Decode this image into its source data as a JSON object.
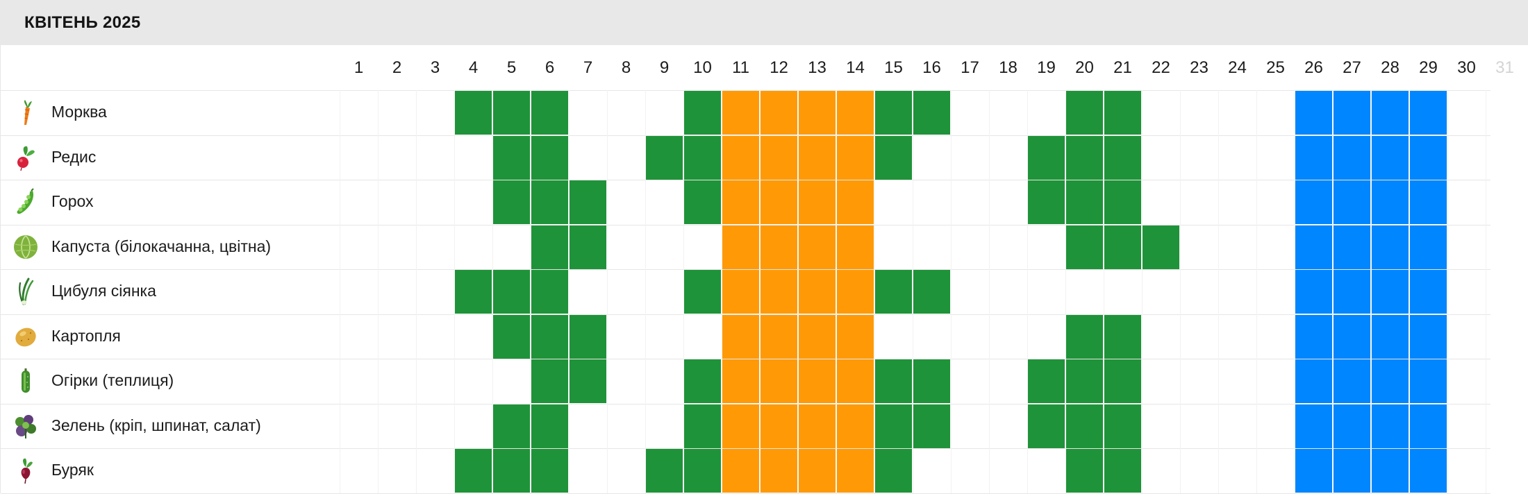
{
  "header": {
    "title": "КВІТЕНЬ 2025"
  },
  "days": [
    1,
    2,
    3,
    4,
    5,
    6,
    7,
    8,
    9,
    10,
    11,
    12,
    13,
    14,
    15,
    16,
    17,
    18,
    19,
    20,
    21,
    22,
    23,
    24,
    25,
    26,
    27,
    28,
    29,
    30,
    31
  ],
  "faded_days": [
    31
  ],
  "colors": {
    "favorable": "#1f9339",
    "unfavorable": "#ff9a06",
    "rest": "#0086ff"
  },
  "global_bands": {
    "unfavorable_days": [
      11,
      12,
      13,
      14
    ],
    "rest_days": [
      26,
      27,
      28,
      29
    ]
  },
  "crops": [
    {
      "name": "Морква",
      "icon": "carrot-icon",
      "favorable_days": [
        4,
        5,
        6,
        10,
        15,
        16,
        20,
        21
      ]
    },
    {
      "name": "Редис",
      "icon": "radish-icon",
      "favorable_days": [
        5,
        6,
        9,
        10,
        15,
        19,
        20,
        21
      ]
    },
    {
      "name": "Горох",
      "icon": "peas-icon",
      "favorable_days": [
        5,
        6,
        7,
        10,
        19,
        20,
        21
      ]
    },
    {
      "name": "Капуста (білокачанна, цвітна)",
      "icon": "cabbage-icon",
      "favorable_days": [
        6,
        7,
        20,
        21,
        22
      ]
    },
    {
      "name": "Цибуля сіянка",
      "icon": "onion-icon",
      "favorable_days": [
        4,
        5,
        6,
        10,
        15,
        16
      ]
    },
    {
      "name": "Картопля",
      "icon": "potato-icon",
      "favorable_days": [
        5,
        6,
        7,
        20,
        21
      ]
    },
    {
      "name": "Огірки (теплиця)",
      "icon": "cucumber-icon",
      "favorable_days": [
        6,
        7,
        10,
        15,
        16,
        19,
        20,
        21
      ]
    },
    {
      "name": "Зелень (кріп, шпинат, салат)",
      "icon": "greens-icon",
      "favorable_days": [
        5,
        6,
        10,
        15,
        16,
        19,
        20,
        21
      ]
    },
    {
      "name": "Буряк",
      "icon": "beet-icon",
      "favorable_days": [
        4,
        5,
        6,
        9,
        10,
        15,
        20,
        21
      ]
    }
  ]
}
